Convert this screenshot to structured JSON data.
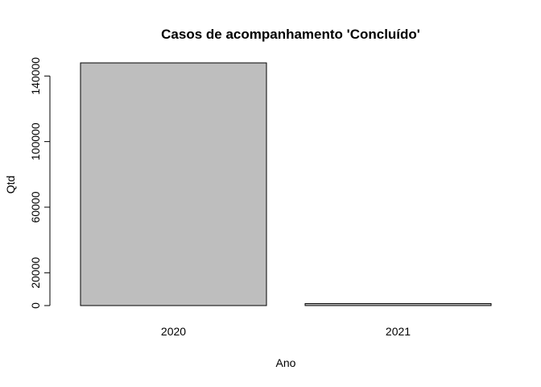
{
  "chart_data": {
    "type": "bar",
    "title": "Casos de acompanhamento 'Concluído'",
    "xlabel": "Ano",
    "ylabel": "Qtd",
    "categories": [
      "2020",
      "2021"
    ],
    "values": [
      148000,
      1200
    ],
    "ylim": [
      0,
      148000
    ],
    "yticks": [
      0,
      20000,
      60000,
      100000,
      140000
    ],
    "bar_fill": "#bebebe",
    "bar_stroke": "#000000",
    "grid": false
  }
}
